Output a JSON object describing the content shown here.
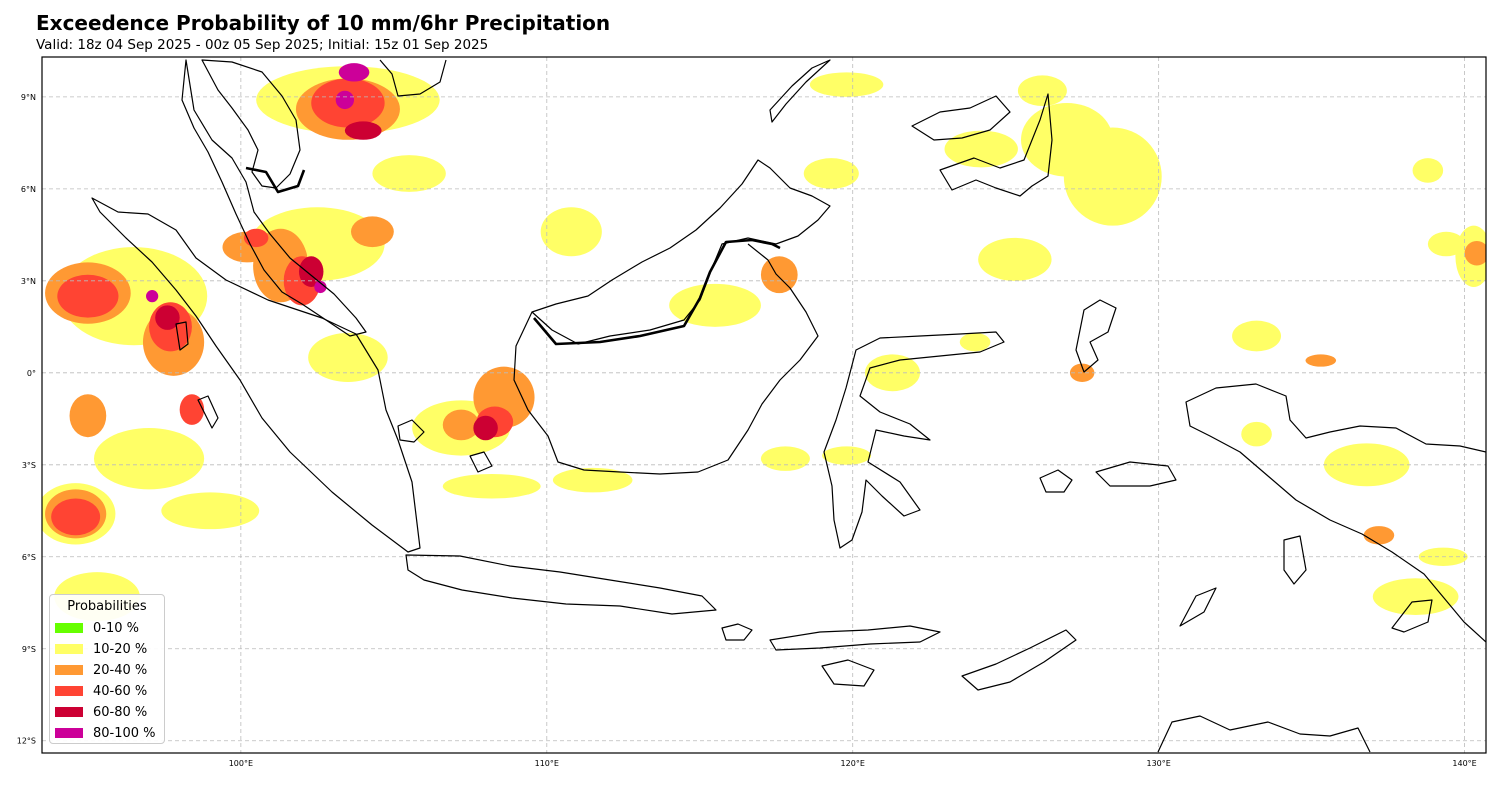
{
  "title": "Exceedence Probability of 10 mm/6hr Precipitation",
  "subtitle": "Valid: 18z 04 Sep 2025 - 00z 05 Sep 2025; Initial: 15z 01 Sep 2025",
  "map": {
    "lon_range": [
      93.5,
      140.7
    ],
    "lat_range": [
      -12.4,
      10.3
    ],
    "gridlines": "dashed",
    "lon_ticks": [
      {
        "value": 100,
        "label": "100°E"
      },
      {
        "value": 110,
        "label": "110°E"
      },
      {
        "value": 120,
        "label": "120°E"
      },
      {
        "value": 130,
        "label": "130°E"
      },
      {
        "value": 140,
        "label": "140°E"
      }
    ],
    "lat_ticks": [
      {
        "value": 9,
        "label": "9°N"
      },
      {
        "value": 6,
        "label": "6°N"
      },
      {
        "value": 3,
        "label": "3°N"
      },
      {
        "value": 0,
        "label": "0°"
      },
      {
        "value": -3,
        "label": "3°S"
      },
      {
        "value": -6,
        "label": "6°S"
      },
      {
        "value": -9,
        "label": "9°S"
      },
      {
        "value": -12,
        "label": "12°S"
      }
    ],
    "coastline_color": "#000000"
  },
  "legend": {
    "title": "Probabilities",
    "placement": "bottom-left",
    "items": [
      {
        "label": "0-10 %",
        "color": "#66ff00"
      },
      {
        "label": "10-20 %",
        "color": "#ffff66"
      },
      {
        "label": "20-40 %",
        "color": "#ff9933"
      },
      {
        "label": "40-60 %",
        "color": "#ff4433"
      },
      {
        "label": "60-80 %",
        "color": "#cc0033"
      },
      {
        "label": "80-100 %",
        "color": "#cc0099"
      }
    ]
  },
  "chart_data": {
    "type": "heatmap",
    "x_unit": "degrees longitude",
    "y_unit": "degrees latitude",
    "blobs": [
      {
        "lon": 96.5,
        "lat": 2.5,
        "rx": 2.4,
        "ry": 1.6,
        "class": "10-20 %"
      },
      {
        "lon": 94.6,
        "lat": -4.6,
        "rx": 1.3,
        "ry": 1.0,
        "class": "10-20 %"
      },
      {
        "lon": 95.3,
        "lat": -7.3,
        "rx": 1.4,
        "ry": 0.8,
        "class": "10-20 %"
      },
      {
        "lon": 97.0,
        "lat": -2.8,
        "rx": 1.8,
        "ry": 1.0,
        "class": "10-20 %"
      },
      {
        "lon": 99.0,
        "lat": -4.5,
        "rx": 1.6,
        "ry": 0.6,
        "class": "10-20 %"
      },
      {
        "lon": 102.5,
        "lat": 4.2,
        "rx": 2.2,
        "ry": 1.2,
        "class": "10-20 %"
      },
      {
        "lon": 103.5,
        "lat": 8.9,
        "rx": 3.0,
        "ry": 1.1,
        "class": "10-20 %"
      },
      {
        "lon": 105.5,
        "lat": 6.5,
        "rx": 1.2,
        "ry": 0.6,
        "class": "10-20 %"
      },
      {
        "lon": 103.5,
        "lat": 0.5,
        "rx": 1.3,
        "ry": 0.8,
        "class": "10-20 %"
      },
      {
        "lon": 107.2,
        "lat": -1.8,
        "rx": 1.6,
        "ry": 0.9,
        "class": "10-20 %"
      },
      {
        "lon": 108.2,
        "lat": -3.7,
        "rx": 1.6,
        "ry": 0.4,
        "class": "10-20 %"
      },
      {
        "lon": 111.5,
        "lat": -3.5,
        "rx": 1.3,
        "ry": 0.4,
        "class": "10-20 %"
      },
      {
        "lon": 110.8,
        "lat": 4.6,
        "rx": 1.0,
        "ry": 0.8,
        "class": "10-20 %"
      },
      {
        "lon": 115.5,
        "lat": 2.2,
        "rx": 1.5,
        "ry": 0.7,
        "class": "10-20 %"
      },
      {
        "lon": 119.3,
        "lat": 6.5,
        "rx": 0.9,
        "ry": 0.5,
        "class": "10-20 %"
      },
      {
        "lon": 119.8,
        "lat": 9.4,
        "rx": 1.2,
        "ry": 0.4,
        "class": "10-20 %"
      },
      {
        "lon": 124.2,
        "lat": 7.3,
        "rx": 1.2,
        "ry": 0.6,
        "class": "10-20 %"
      },
      {
        "lon": 127.0,
        "lat": 7.6,
        "rx": 1.5,
        "ry": 1.2,
        "class": "10-20 %"
      },
      {
        "lon": 125.3,
        "lat": 3.7,
        "rx": 1.2,
        "ry": 0.7,
        "class": "10-20 %"
      },
      {
        "lon": 128.5,
        "lat": 6.4,
        "rx": 1.6,
        "ry": 1.6,
        "class": "10-20 %"
      },
      {
        "lon": 126.2,
        "lat": 9.2,
        "rx": 0.8,
        "ry": 0.5,
        "class": "10-20 %"
      },
      {
        "lon": 121.3,
        "lat": 0.0,
        "rx": 0.9,
        "ry": 0.6,
        "class": "10-20 %"
      },
      {
        "lon": 119.8,
        "lat": -2.7,
        "rx": 0.8,
        "ry": 0.3,
        "class": "10-20 %"
      },
      {
        "lon": 117.8,
        "lat": -2.8,
        "rx": 0.8,
        "ry": 0.4,
        "class": "10-20 %"
      },
      {
        "lon": 133.2,
        "lat": 1.2,
        "rx": 0.8,
        "ry": 0.5,
        "class": "10-20 %"
      },
      {
        "lon": 136.8,
        "lat": -3.0,
        "rx": 1.4,
        "ry": 0.7,
        "class": "10-20 %"
      },
      {
        "lon": 138.4,
        "lat": -7.3,
        "rx": 1.4,
        "ry": 0.6,
        "class": "10-20 %"
      },
      {
        "lon": 140.3,
        "lat": 3.8,
        "rx": 0.6,
        "ry": 1.0,
        "class": "10-20 %"
      },
      {
        "lon": 139.3,
        "lat": -6.0,
        "rx": 0.8,
        "ry": 0.3,
        "class": "10-20 %"
      },
      {
        "lon": 138.8,
        "lat": 6.6,
        "rx": 0.5,
        "ry": 0.4,
        "class": "10-20 %"
      },
      {
        "lon": 139.4,
        "lat": 4.2,
        "rx": 0.6,
        "ry": 0.4,
        "class": "10-20 %"
      },
      {
        "lon": 133.2,
        "lat": -2.0,
        "rx": 0.5,
        "ry": 0.4,
        "class": "10-20 %"
      },
      {
        "lon": 124.0,
        "lat": 1.0,
        "rx": 0.5,
        "ry": 0.3,
        "class": "10-20 %"
      },
      {
        "lon": 95.0,
        "lat": 2.6,
        "rx": 1.4,
        "ry": 1.0,
        "class": "20-40 %"
      },
      {
        "lon": 97.8,
        "lat": 1.0,
        "rx": 1.0,
        "ry": 1.1,
        "class": "20-40 %"
      },
      {
        "lon": 94.6,
        "lat": -4.6,
        "rx": 1.0,
        "ry": 0.8,
        "class": "20-40 %"
      },
      {
        "lon": 95.0,
        "lat": -1.4,
        "rx": 0.6,
        "ry": 0.7,
        "class": "20-40 %"
      },
      {
        "lon": 100.2,
        "lat": 4.1,
        "rx": 0.8,
        "ry": 0.5,
        "class": "20-40 %"
      },
      {
        "lon": 101.3,
        "lat": 3.5,
        "rx": 0.9,
        "ry": 1.2,
        "class": "20-40 %"
      },
      {
        "lon": 103.5,
        "lat": 8.6,
        "rx": 1.7,
        "ry": 1.0,
        "class": "20-40 %"
      },
      {
        "lon": 104.3,
        "lat": 4.6,
        "rx": 0.7,
        "ry": 0.5,
        "class": "20-40 %"
      },
      {
        "lon": 108.6,
        "lat": -0.8,
        "rx": 1.0,
        "ry": 1.0,
        "class": "20-40 %"
      },
      {
        "lon": 107.2,
        "lat": -1.7,
        "rx": 0.6,
        "ry": 0.5,
        "class": "20-40 %"
      },
      {
        "lon": 117.6,
        "lat": 3.2,
        "rx": 0.6,
        "ry": 0.6,
        "class": "20-40 %"
      },
      {
        "lon": 127.5,
        "lat": 0.0,
        "rx": 0.4,
        "ry": 0.3,
        "class": "20-40 %"
      },
      {
        "lon": 135.3,
        "lat": 0.4,
        "rx": 0.5,
        "ry": 0.2,
        "class": "20-40 %"
      },
      {
        "lon": 137.2,
        "lat": -5.3,
        "rx": 0.5,
        "ry": 0.3,
        "class": "20-40 %"
      },
      {
        "lon": 140.4,
        "lat": 3.9,
        "rx": 0.4,
        "ry": 0.4,
        "class": "20-40 %"
      },
      {
        "lon": 95.0,
        "lat": 2.5,
        "rx": 1.0,
        "ry": 0.7,
        "class": "40-60 %"
      },
      {
        "lon": 94.6,
        "lat": -4.7,
        "rx": 0.8,
        "ry": 0.6,
        "class": "40-60 %"
      },
      {
        "lon": 97.7,
        "lat": 1.5,
        "rx": 0.7,
        "ry": 0.8,
        "class": "40-60 %"
      },
      {
        "lon": 98.4,
        "lat": -1.2,
        "rx": 0.4,
        "ry": 0.5,
        "class": "40-60 %"
      },
      {
        "lon": 102.0,
        "lat": 3.0,
        "rx": 0.6,
        "ry": 0.8,
        "class": "40-60 %"
      },
      {
        "lon": 103.5,
        "lat": 8.8,
        "rx": 1.2,
        "ry": 0.8,
        "class": "40-60 %"
      },
      {
        "lon": 100.5,
        "lat": 4.4,
        "rx": 0.4,
        "ry": 0.3,
        "class": "40-60 %"
      },
      {
        "lon": 108.3,
        "lat": -1.6,
        "rx": 0.6,
        "ry": 0.5,
        "class": "40-60 %"
      },
      {
        "lon": 102.3,
        "lat": 3.3,
        "rx": 0.4,
        "ry": 0.5,
        "class": "60-80 %"
      },
      {
        "lon": 104.0,
        "lat": 7.9,
        "rx": 0.6,
        "ry": 0.3,
        "class": "60-80 %"
      },
      {
        "lon": 108.0,
        "lat": -1.8,
        "rx": 0.4,
        "ry": 0.4,
        "class": "60-80 %"
      },
      {
        "lon": 97.6,
        "lat": 1.8,
        "rx": 0.4,
        "ry": 0.4,
        "class": "60-80 %"
      },
      {
        "lon": 103.7,
        "lat": 9.8,
        "rx": 0.5,
        "ry": 0.3,
        "class": "80-100 %"
      },
      {
        "lon": 103.4,
        "lat": 8.9,
        "rx": 0.3,
        "ry": 0.3,
        "class": "80-100 %"
      },
      {
        "lon": 97.1,
        "lat": 2.5,
        "rx": 0.2,
        "ry": 0.2,
        "class": "80-100 %"
      },
      {
        "lon": 102.6,
        "lat": 2.8,
        "rx": 0.2,
        "ry": 0.2,
        "class": "80-100 %"
      }
    ]
  }
}
